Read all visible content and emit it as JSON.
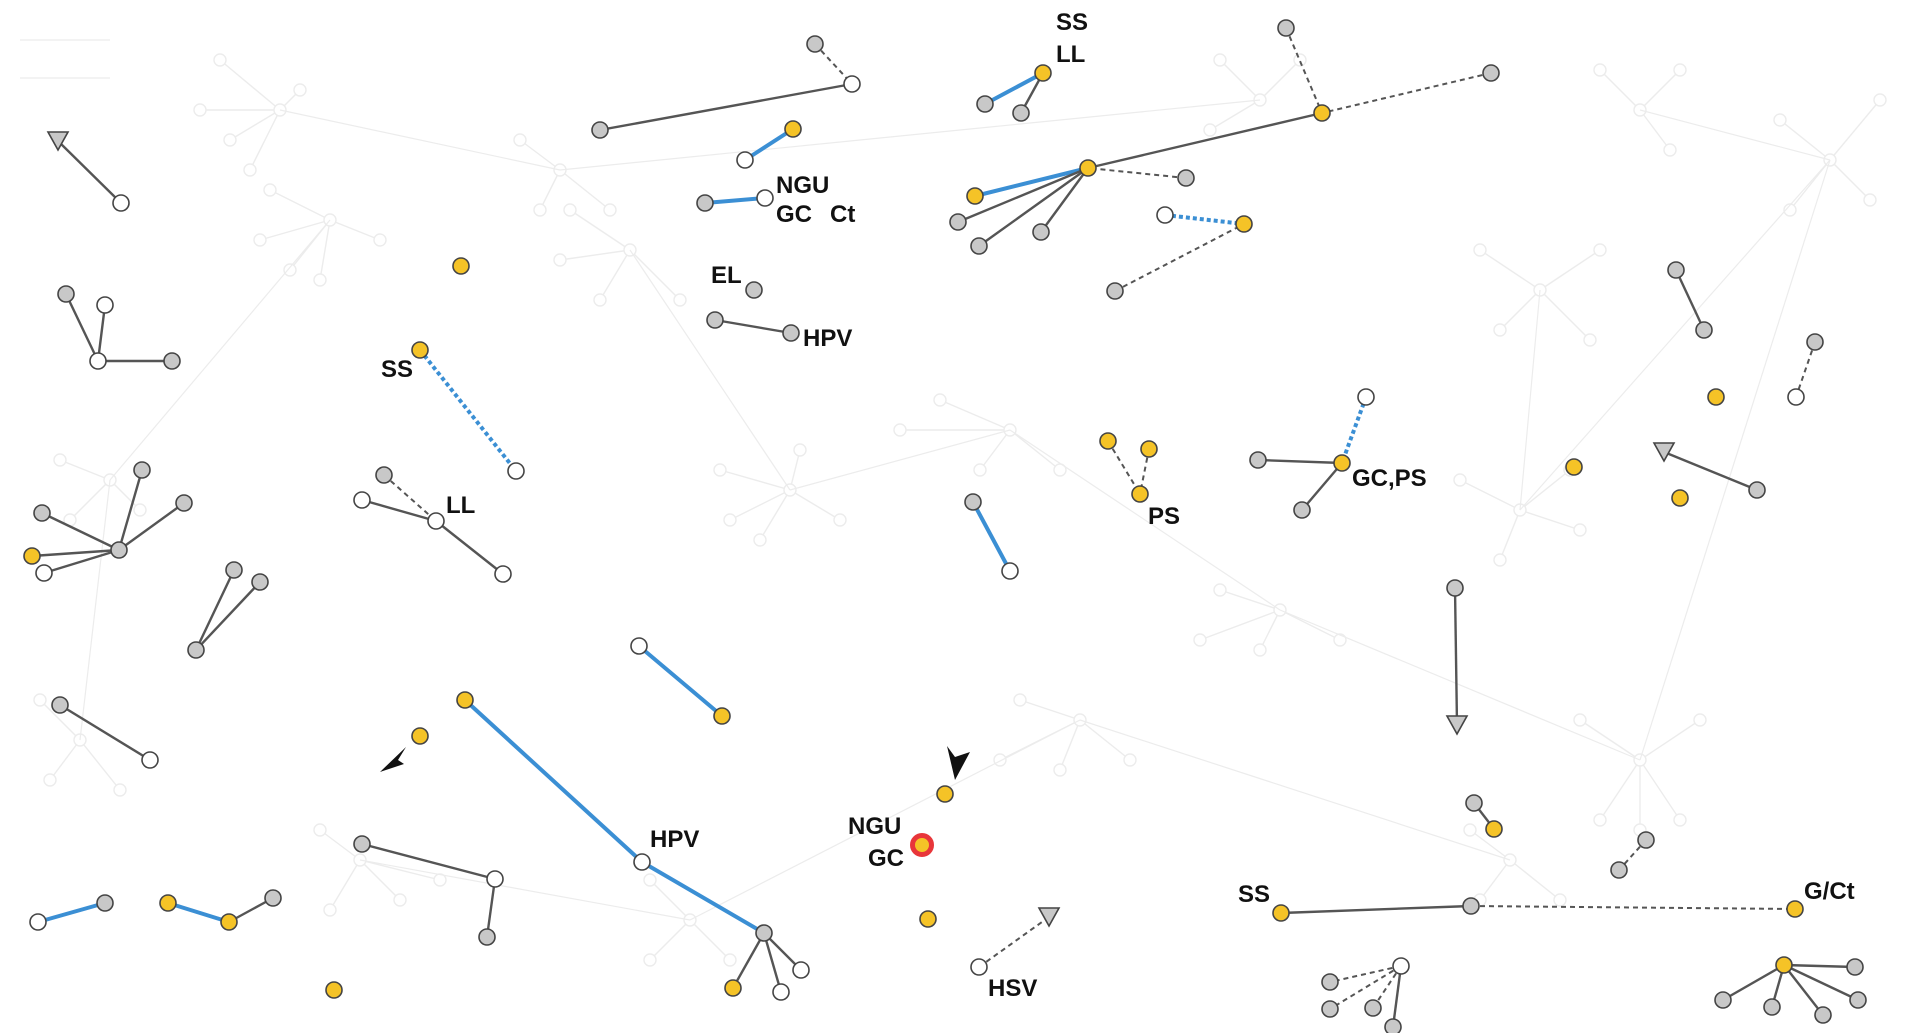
{
  "colors": {
    "gray": "#c8c8c8",
    "yellow": "#f5c327",
    "white": "#ffffff",
    "stroke": "#444444",
    "blue_edge": "#3b8fd4",
    "gray_edge": "#555555",
    "faint": "#ececec",
    "highlight": "#e8363a"
  },
  "labels": [
    {
      "id": "l1",
      "text": "SS"
    },
    {
      "id": "l2",
      "text": "LL"
    },
    {
      "id": "l3",
      "text": "NGU"
    },
    {
      "id": "l4",
      "text": "GC"
    },
    {
      "id": "l5",
      "text": "Ct"
    },
    {
      "id": "l6",
      "text": "EL"
    },
    {
      "id": "l7",
      "text": "HPV"
    },
    {
      "id": "l8",
      "text": "SS"
    },
    {
      "id": "l9",
      "text": "LL"
    },
    {
      "id": "l10",
      "text": "PS"
    },
    {
      "id": "l11",
      "text": "GC,PS"
    },
    {
      "id": "l12",
      "text": "HPV"
    },
    {
      "id": "l13",
      "text": "NGU"
    },
    {
      "id": "l14",
      "text": "GC"
    },
    {
      "id": "l15",
      "text": "HSV"
    },
    {
      "id": "l16",
      "text": "SS"
    },
    {
      "id": "l17",
      "text": "G/Ct"
    }
  ],
  "legend": {
    "node_types": [
      "gray-node",
      "yellow-node",
      "white-node",
      "triangle-node",
      "highlighted-node"
    ],
    "edge_types": [
      "solid-gray",
      "solid-blue",
      "dashed-gray",
      "dotted-blue",
      "faint-background"
    ]
  },
  "markers": [
    {
      "id": "arrow-1",
      "shape": "arrowhead-icon"
    },
    {
      "id": "arrow-2",
      "shape": "arrowhead-icon"
    }
  ]
}
